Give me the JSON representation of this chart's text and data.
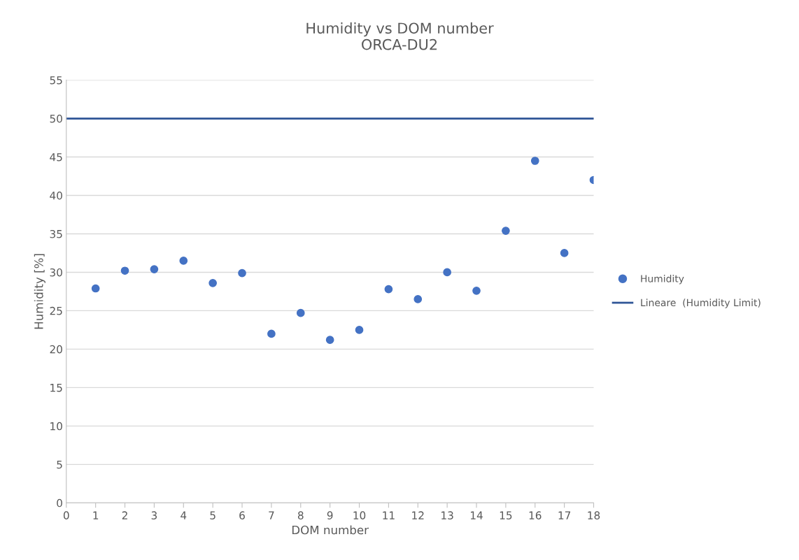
{
  "chart_data": {
    "type": "scatter",
    "title": "Humidity vs DOM number\nORCA-DU2",
    "xlabel": "DOM number",
    "ylabel": "Humidity [%]",
    "xlim": [
      0,
      18
    ],
    "xticks": [
      0,
      1,
      2,
      3,
      4,
      5,
      6,
      7,
      8,
      9,
      10,
      11,
      12,
      13,
      14,
      15,
      16,
      17,
      18
    ],
    "ylim": [
      0,
      55
    ],
    "yticks": [
      0,
      5,
      10,
      15,
      20,
      25,
      30,
      35,
      40,
      45,
      50,
      55
    ],
    "grid": "y",
    "legend": "right",
    "series": [
      {
        "name": "Humidity",
        "marker": "circle",
        "color": "#4472c4",
        "x": [
          1,
          2,
          3,
          4,
          5,
          6,
          7,
          8,
          9,
          10,
          11,
          12,
          13,
          14,
          15,
          16,
          17,
          18
        ],
        "values": [
          27.9,
          30.2,
          30.4,
          31.5,
          28.6,
          29.9,
          22.0,
          24.7,
          21.2,
          22.5,
          27.8,
          26.5,
          30.0,
          27.6,
          35.4,
          44.5,
          32.5,
          42.0
        ]
      },
      {
        "name": "Lineare  (Humidity Limit)",
        "type": "line",
        "marker": "none",
        "color": "#2f5597",
        "x": [
          0,
          18
        ],
        "values": [
          50,
          50
        ]
      }
    ]
  }
}
